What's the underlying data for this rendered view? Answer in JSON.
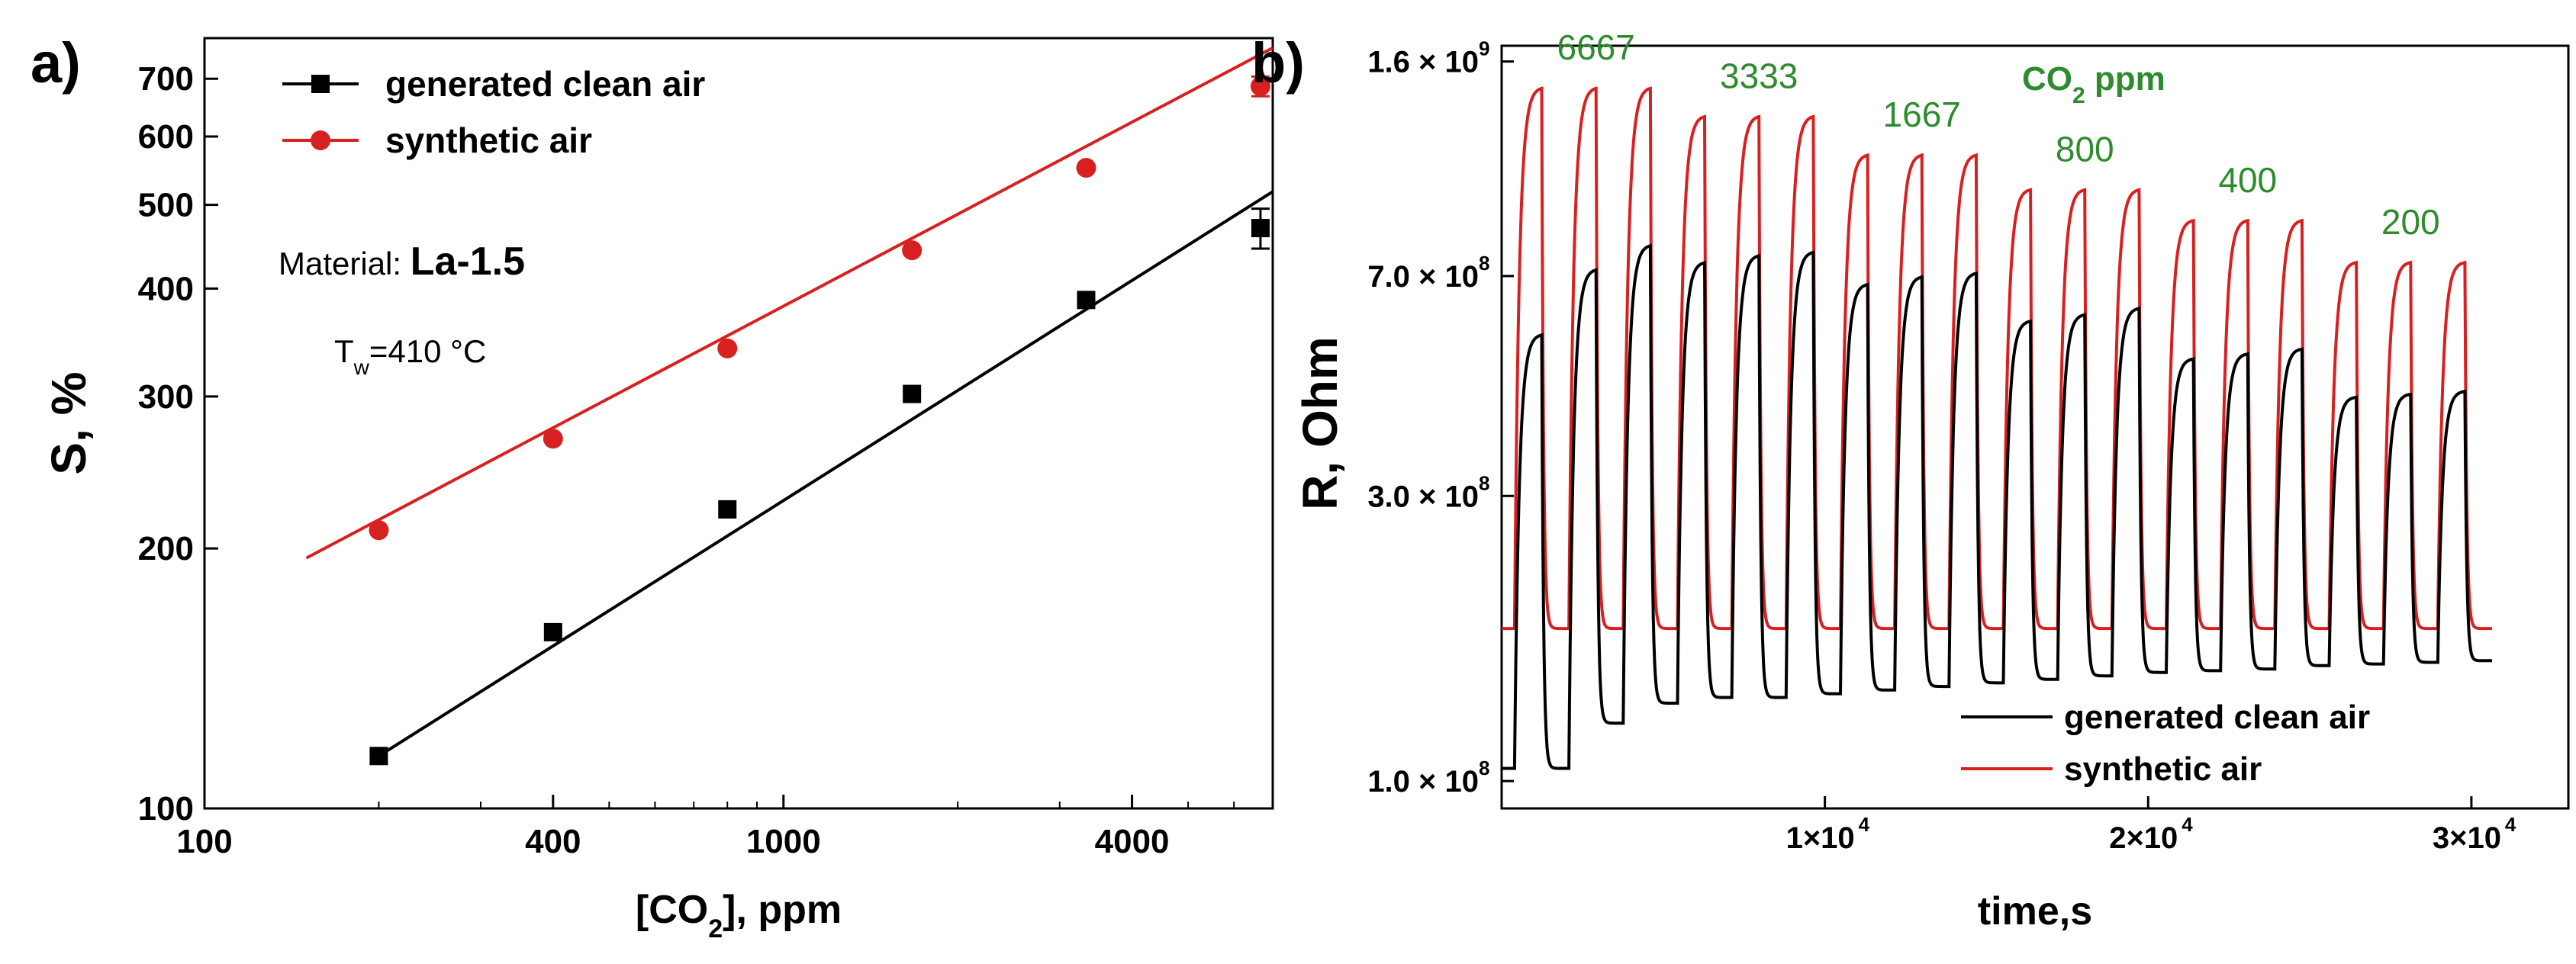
{
  "colors": {
    "black": "#000000",
    "red": "#d92020",
    "green": "#2e8b2e"
  },
  "chart_data": [
    {
      "panel": "a)",
      "type": "scatter",
      "scale": "log-log",
      "title": "",
      "xlabel": "[CO2], ppm",
      "ylabel": "S, %",
      "xlim": [
        100,
        7000
      ],
      "ylim": [
        100,
        780
      ],
      "x_ticks": [
        100,
        400,
        1000,
        4000
      ],
      "x_tick_labels": [
        "100",
        "400",
        "1000",
        "4000"
      ],
      "y_ticks": [
        100,
        200,
        300,
        400,
        500,
        600,
        700
      ],
      "y_tick_labels": [
        "100",
        "200",
        "300",
        "400",
        "500",
        "600",
        "700"
      ],
      "annotations": {
        "material_prefix": "Material: ",
        "material": "La-1.5",
        "tw_base": "T",
        "tw_sub": "w",
        "tw_value": "=410 °C"
      },
      "series": [
        {
          "name": "generated clean air",
          "color": "#000000",
          "marker": "square",
          "x": [
            200,
            400,
            800,
            1667,
            3333,
            6667
          ],
          "y": [
            115,
            160,
            222,
            302,
            388,
            470
          ],
          "error_bar_last": 25,
          "fit": {
            "x": [
              200,
              7000
            ],
            "y": [
              115,
              518
            ]
          }
        },
        {
          "name": "synthetic air",
          "color": "#d92020",
          "marker": "circle",
          "x": [
            200,
            400,
            800,
            1667,
            3333,
            6667
          ],
          "y": [
            210,
            268,
            341,
            443,
            552,
            686
          ],
          "error_bar_last": 18,
          "fit": {
            "x": [
              150,
              7000
            ],
            "y": [
              195,
              760
            ]
          }
        }
      ]
    },
    {
      "panel": "b)",
      "type": "line",
      "scale": "log-y",
      "title": "",
      "xlabel": "time,s",
      "ylabel": "R, Ohm",
      "xlim": [
        0,
        33000
      ],
      "ylim": [
        90000000,
        1700000000
      ],
      "y_ticks": [
        100000000,
        300000000,
        700000000,
        1600000000
      ],
      "y_tick_labels": [
        "1.0 × 10",
        "3.0 × 10",
        "7.0 × 10",
        "1.6 × 10"
      ],
      "y_tick_exp": "8",
      "y_tick_exp_top": "9",
      "x_ticks": [
        10000,
        20000,
        30000
      ],
      "x_tick_labels": [
        "1×10",
        "2×10",
        "3×10"
      ],
      "x_tick_exp": "4",
      "legend": [
        "generated clean air",
        "synthetic air"
      ],
      "co2_title": "CO",
      "co2_title_sub": "2",
      "co2_title_unit": " ppm",
      "concentrations": [
        "6667",
        "3333",
        "1667",
        "800",
        "400",
        "200"
      ],
      "cycle_period_s": 1680,
      "cycle_start_s": 400,
      "cycles_per_concentration": 3,
      "series": [
        {
          "name": "synthetic air",
          "color": "#d92020",
          "peak": [
            1450000000,
            1450000000,
            1450000000,
            1300000000,
            1300000000,
            1300000000,
            1120000000,
            1120000000,
            1120000000,
            980000000,
            980000000,
            980000000,
            870000000,
            870000000,
            870000000,
            740000000,
            740000000,
            740000000
          ],
          "baseline": [
            180000000,
            180000000,
            180000000,
            180000000,
            180000000,
            180000000,
            180000000,
            180000000,
            180000000,
            180000000,
            180000000,
            180000000,
            180000000,
            180000000,
            180000000,
            180000000,
            180000000,
            180000000
          ]
        },
        {
          "name": "generated clean air",
          "color": "#000000",
          "peak": [
            560000000,
            720000000,
            790000000,
            740000000,
            760000000,
            770000000,
            680000000,
            700000000,
            710000000,
            590000000,
            605000000,
            620000000,
            510000000,
            520000000,
            530000000,
            440000000,
            445000000,
            450000000
          ],
          "baseline": [
            105000000,
            125000000,
            135000000,
            138000000,
            138000000,
            140000000,
            142000000,
            144000000,
            146000000,
            148000000,
            150000000,
            152000000,
            153000000,
            154000000,
            156000000,
            157000000,
            158000000,
            159000000
          ]
        }
      ]
    }
  ]
}
